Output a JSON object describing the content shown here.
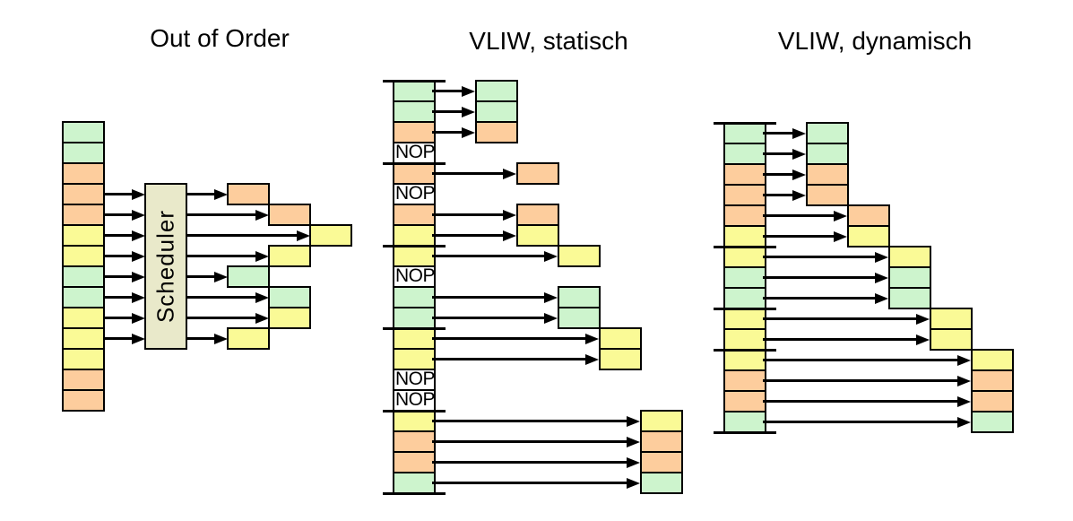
{
  "colors": {
    "green": "#cdf4cd",
    "orange": "#fdcd9d",
    "yellow": "#fafa96",
    "nop_fill": "#ffffff",
    "scheduler_fill": "#e9e9ca",
    "outline": "#000000",
    "background": "#ffffff"
  },
  "labels": {
    "nop": "NOP"
  },
  "diagrams": [
    {
      "id": "out-of-order",
      "title": "Out of Order",
      "scheduler_label": "Scheduler",
      "stack": [
        "green",
        "green",
        "orange",
        "orange",
        "orange",
        "yellow",
        "yellow",
        "green",
        "green",
        "yellow",
        "yellow",
        "yellow",
        "orange",
        "orange"
      ],
      "has_top_separator": false,
      "bundle_separators_after": [],
      "scheduled": [
        {
          "row": 3,
          "slot": 0,
          "color": "orange"
        },
        {
          "row": 4,
          "slot": 1,
          "color": "orange"
        },
        {
          "row": 5,
          "slot": 2,
          "color": "yellow"
        },
        {
          "row": 6,
          "slot": 1,
          "color": "yellow"
        },
        {
          "row": 7,
          "slot": 0,
          "color": "green"
        },
        {
          "row": 8,
          "slot": 1,
          "color": "green"
        },
        {
          "row": 9,
          "slot": 1,
          "color": "yellow"
        },
        {
          "row": 10,
          "slot": 0,
          "color": "yellow"
        }
      ]
    },
    {
      "id": "vliw-static",
      "title": "VLIW, statisch",
      "stack": [
        "green",
        "green",
        "orange",
        "nop",
        "orange",
        "nop",
        "orange",
        "yellow",
        "yellow",
        "nop",
        "green",
        "green",
        "yellow",
        "yellow",
        "nop",
        "nop",
        "yellow",
        "orange",
        "orange",
        "green"
      ],
      "has_top_separator": true,
      "bundle_separators_after": [
        3,
        7,
        11,
        15,
        19
      ],
      "scheduled": [
        {
          "row": 0,
          "slot": 0,
          "color": "green"
        },
        {
          "row": 1,
          "slot": 0,
          "color": "green"
        },
        {
          "row": 2,
          "slot": 0,
          "color": "orange"
        },
        {
          "row": 4,
          "slot": 1,
          "color": "orange"
        },
        {
          "row": 6,
          "slot": 1,
          "color": "orange"
        },
        {
          "row": 7,
          "slot": 1,
          "color": "yellow"
        },
        {
          "row": 8,
          "slot": 2,
          "color": "yellow"
        },
        {
          "row": 10,
          "slot": 2,
          "color": "green"
        },
        {
          "row": 11,
          "slot": 2,
          "color": "green"
        },
        {
          "row": 12,
          "slot": 3,
          "color": "yellow"
        },
        {
          "row": 13,
          "slot": 3,
          "color": "yellow"
        },
        {
          "row": 16,
          "slot": 4,
          "color": "yellow"
        },
        {
          "row": 17,
          "slot": 4,
          "color": "orange"
        },
        {
          "row": 18,
          "slot": 4,
          "color": "orange"
        },
        {
          "row": 19,
          "slot": 4,
          "color": "green"
        }
      ]
    },
    {
      "id": "vliw-dynamic",
      "title": "VLIW, dynamisch",
      "stack": [
        "green",
        "green",
        "orange",
        "orange",
        "orange",
        "yellow",
        "yellow",
        "green",
        "green",
        "yellow",
        "yellow",
        "yellow",
        "orange",
        "orange",
        "green"
      ],
      "has_top_separator": true,
      "bundle_separators_after": [
        5,
        8,
        10,
        14
      ],
      "scheduled": [
        {
          "row": 0,
          "slot": 0,
          "color": "green"
        },
        {
          "row": 1,
          "slot": 0,
          "color": "green"
        },
        {
          "row": 2,
          "slot": 0,
          "color": "orange"
        },
        {
          "row": 3,
          "slot": 0,
          "color": "orange"
        },
        {
          "row": 4,
          "slot": 1,
          "color": "orange"
        },
        {
          "row": 5,
          "slot": 1,
          "color": "yellow"
        },
        {
          "row": 6,
          "slot": 2,
          "color": "yellow"
        },
        {
          "row": 7,
          "slot": 2,
          "color": "green"
        },
        {
          "row": 8,
          "slot": 2,
          "color": "green"
        },
        {
          "row": 9,
          "slot": 3,
          "color": "yellow"
        },
        {
          "row": 10,
          "slot": 3,
          "color": "yellow"
        },
        {
          "row": 11,
          "slot": 4,
          "color": "yellow"
        },
        {
          "row": 12,
          "slot": 4,
          "color": "orange"
        },
        {
          "row": 13,
          "slot": 4,
          "color": "orange"
        },
        {
          "row": 14,
          "slot": 4,
          "color": "green"
        }
      ]
    }
  ]
}
